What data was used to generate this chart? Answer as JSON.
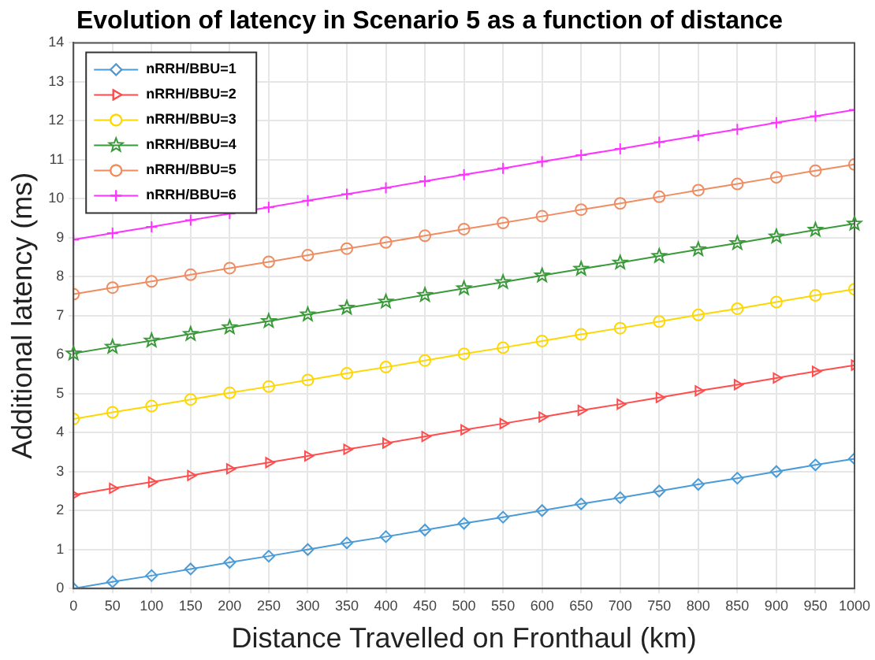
{
  "chart_data": {
    "type": "line",
    "title": "Evolution of latency in Scenario 5 as a function of distance",
    "xlabel": "Distance Travelled on Fronthaul (km)",
    "ylabel": "Additional latency (ms)",
    "x": [
      0,
      50,
      100,
      150,
      200,
      250,
      300,
      350,
      400,
      450,
      500,
      550,
      600,
      650,
      700,
      750,
      800,
      850,
      900,
      950,
      1000
    ],
    "xlim": [
      0,
      1000
    ],
    "xticks": [
      0,
      50,
      100,
      150,
      200,
      250,
      300,
      350,
      400,
      450,
      500,
      550,
      600,
      650,
      700,
      750,
      800,
      850,
      900,
      950,
      1000
    ],
    "ylim": [
      0,
      14
    ],
    "yticks": [
      0,
      1,
      2,
      3,
      4,
      5,
      6,
      7,
      8,
      9,
      10,
      11,
      12,
      13,
      14
    ],
    "grid": true,
    "legend": "top left",
    "line_style": "solid",
    "series": [
      {
        "name": "nRRH/BBU=1",
        "color": "#4a9bd6",
        "marker": "diamond",
        "values": [
          0,
          0.17,
          0.33,
          0.5,
          0.67,
          0.83,
          1.0,
          1.17,
          1.33,
          1.5,
          1.67,
          1.83,
          2.0,
          2.17,
          2.33,
          2.5,
          2.67,
          2.83,
          3.0,
          3.17,
          3.33
        ]
      },
      {
        "name": "nRRH/BBU=2",
        "color": "#ff4d4d",
        "marker": "triangle",
        "values": [
          2.4,
          2.57,
          2.73,
          2.9,
          3.07,
          3.23,
          3.4,
          3.57,
          3.73,
          3.9,
          4.07,
          4.23,
          4.4,
          4.57,
          4.73,
          4.9,
          5.07,
          5.23,
          5.4,
          5.57,
          5.73
        ]
      },
      {
        "name": "nRRH/BBU=3",
        "color": "#ffd700",
        "marker": "circle",
        "values": [
          4.35,
          4.52,
          4.68,
          4.85,
          5.02,
          5.18,
          5.35,
          5.52,
          5.68,
          5.85,
          6.02,
          6.18,
          6.35,
          6.52,
          6.68,
          6.85,
          7.02,
          7.18,
          7.35,
          7.52,
          7.68
        ]
      },
      {
        "name": "nRRH/BBU=4",
        "color": "#3a9a3a",
        "marker": "star",
        "values": [
          6.03,
          6.2,
          6.36,
          6.53,
          6.7,
          6.86,
          7.03,
          7.2,
          7.36,
          7.53,
          7.7,
          7.86,
          8.03,
          8.2,
          8.36,
          8.53,
          8.7,
          8.86,
          9.03,
          9.2,
          9.36
        ]
      },
      {
        "name": "nRRH/BBU=5",
        "color": "#f08c60",
        "marker": "circle",
        "values": [
          7.55,
          7.72,
          7.88,
          8.05,
          8.22,
          8.38,
          8.55,
          8.72,
          8.88,
          9.05,
          9.22,
          9.38,
          9.55,
          9.72,
          9.88,
          10.05,
          10.22,
          10.38,
          10.55,
          10.72,
          10.88
        ]
      },
      {
        "name": "nRRH/BBU=6",
        "color": "#ff33ff",
        "marker": "cross",
        "values": [
          8.95,
          9.12,
          9.28,
          9.45,
          9.62,
          9.78,
          9.95,
          10.12,
          10.28,
          10.45,
          10.62,
          10.78,
          10.95,
          11.12,
          11.28,
          11.45,
          11.62,
          11.78,
          11.95,
          12.12,
          12.28
        ]
      }
    ]
  }
}
